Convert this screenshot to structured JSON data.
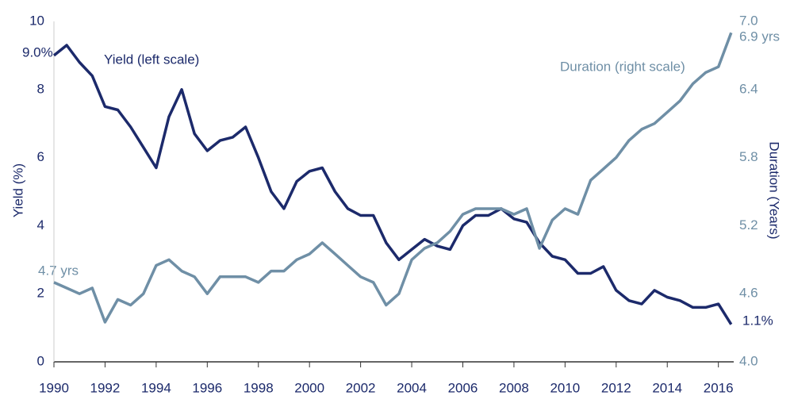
{
  "chart_data": {
    "type": "line",
    "y_label": "Yield (%)",
    "y2_label": "Duration (Years)",
    "annotations": [
      "9.0%",
      "Yield (left scale)",
      "Duration (right scale)",
      "6.9 yrs",
      "4.7 yrs",
      "1.1%"
    ],
    "x": [
      1990,
      1990.5,
      1991,
      1991.5,
      1992,
      1992.5,
      1993,
      1993.5,
      1994,
      1994.5,
      1995,
      1995.5,
      1996,
      1996.5,
      1997,
      1997.5,
      1998,
      1998.5,
      1999,
      1999.5,
      2000,
      2000.5,
      2001,
      2001.5,
      2002,
      2002.5,
      2003,
      2003.5,
      2004,
      2004.5,
      2005,
      2005.5,
      2006,
      2006.5,
      2007,
      2007.5,
      2008,
      2008.5,
      2009,
      2009.5,
      2010,
      2010.5,
      2011,
      2011.5,
      2012,
      2012.5,
      2013,
      2013.5,
      2014,
      2014.5,
      2015,
      2015.5,
      2016,
      2016.5
    ],
    "series": [
      {
        "name": "Yield",
        "color": "#1c2a6b",
        "axis": "y",
        "values": [
          9.0,
          9.3,
          8.8,
          8.4,
          7.5,
          7.4,
          6.9,
          6.3,
          5.7,
          7.2,
          8.0,
          6.7,
          6.2,
          6.5,
          6.6,
          6.9,
          6.0,
          5.0,
          4.5,
          5.3,
          5.6,
          5.7,
          5.0,
          4.5,
          4.3,
          4.3,
          3.5,
          3.0,
          3.3,
          3.6,
          3.4,
          3.3,
          4.0,
          4.3,
          4.3,
          4.5,
          4.2,
          4.1,
          3.5,
          3.1,
          3.0,
          2.6,
          2.6,
          2.8,
          2.1,
          1.8,
          1.7,
          2.1,
          1.9,
          1.8,
          1.6,
          1.6,
          1.7,
          1.1
        ]
      },
      {
        "name": "Duration",
        "color": "#6f8fa6",
        "axis": "y2",
        "values": [
          4.7,
          4.65,
          4.6,
          4.65,
          4.35,
          4.55,
          4.5,
          4.6,
          4.85,
          4.9,
          4.8,
          4.75,
          4.6,
          4.75,
          4.75,
          4.75,
          4.7,
          4.8,
          4.8,
          4.9,
          4.95,
          5.05,
          4.95,
          4.85,
          4.75,
          4.7,
          4.5,
          4.6,
          4.9,
          5.0,
          5.05,
          5.15,
          5.3,
          5.35,
          5.35,
          5.35,
          5.3,
          5.35,
          5.0,
          5.25,
          5.35,
          5.3,
          5.6,
          5.7,
          5.8,
          5.95,
          6.05,
          6.1,
          6.2,
          6.3,
          6.45,
          6.55,
          6.6,
          6.9
        ]
      }
    ],
    "xlim": [
      1990,
      2016.6
    ],
    "xticks": [
      1990,
      1992,
      1994,
      1996,
      1998,
      2000,
      2002,
      2004,
      2006,
      2008,
      2010,
      2012,
      2014,
      2016
    ],
    "ylim": [
      0,
      10
    ],
    "yticks": [
      0,
      2,
      4,
      6,
      8,
      10
    ],
    "y2lim": [
      4,
      7
    ],
    "y2ticks": [
      {
        "value": 4,
        "label": "4.0"
      },
      4.6,
      5.2,
      5.8,
      6.4,
      {
        "value": 7,
        "label": "7.0"
      }
    ],
    "grid": false
  }
}
